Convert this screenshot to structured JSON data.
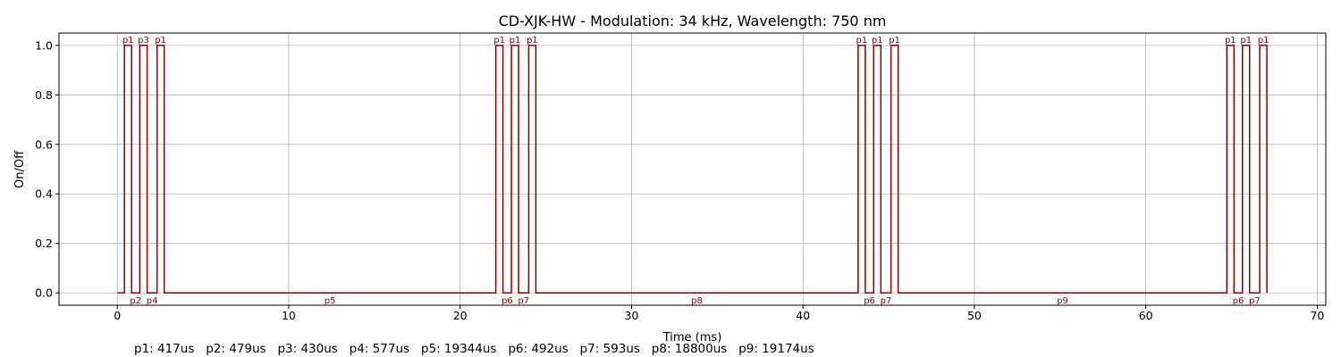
{
  "chart_data": {
    "type": "line",
    "style": "step",
    "title": "CD-XJK-HW - Modulation: 34 kHz, Wavelength: 750 nm",
    "xlabel": "Time (ms)",
    "ylabel": "On/Off",
    "xlim": [
      -3.4,
      70.5
    ],
    "ylim": [
      -0.05,
      1.05
    ],
    "xticks": [
      0,
      10,
      20,
      30,
      40,
      50,
      60,
      70
    ],
    "yticks": [
      0.0,
      0.2,
      0.4,
      0.6,
      0.8,
      1.0
    ],
    "xtick_labels": [
      "0",
      "10",
      "20",
      "30",
      "40",
      "50",
      "60",
      "70"
    ],
    "ytick_labels": [
      "0.0",
      "0.2",
      "0.4",
      "0.6",
      "0.8",
      "1.0"
    ],
    "grid": true,
    "color": "#8b0000",
    "lead_in_ms": 0.417,
    "segments": [
      {
        "label": "p1",
        "state": 1
      },
      {
        "label": "p2",
        "state": 0
      },
      {
        "label": "p3",
        "state": 1
      },
      {
        "label": "p4",
        "state": 0
      },
      {
        "label": "p1",
        "state": 1
      },
      {
        "label": "p5",
        "state": 0
      },
      {
        "label": "p1",
        "state": 1
      },
      {
        "label": "p6",
        "state": 0
      },
      {
        "label": "p1",
        "state": 1
      },
      {
        "label": "p7",
        "state": 0
      },
      {
        "label": "p1",
        "state": 1
      },
      {
        "label": "p8",
        "state": 0
      },
      {
        "label": "p1",
        "state": 1
      },
      {
        "label": "p6",
        "state": 0
      },
      {
        "label": "p1",
        "state": 1
      },
      {
        "label": "p7",
        "state": 0
      },
      {
        "label": "p1",
        "state": 1
      },
      {
        "label": "p9",
        "state": 0
      },
      {
        "label": "p1",
        "state": 1
      },
      {
        "label": "p6",
        "state": 0
      },
      {
        "label": "p1",
        "state": 1
      },
      {
        "label": "p7",
        "state": 0
      },
      {
        "label": "p1",
        "state": 1
      }
    ],
    "pulse_durations_us": {
      "p1": 417,
      "p2": 479,
      "p3": 430,
      "p4": 577,
      "p5": 19344,
      "p6": 492,
      "p7": 593,
      "p8": 18800,
      "p9": 19174
    },
    "legend_text": "p1: 417us   p2: 479us   p3: 430us   p4: 577us   p5: 19344us   p6: 492us   p7: 593us   p8: 18800us   p9: 19174us"
  }
}
